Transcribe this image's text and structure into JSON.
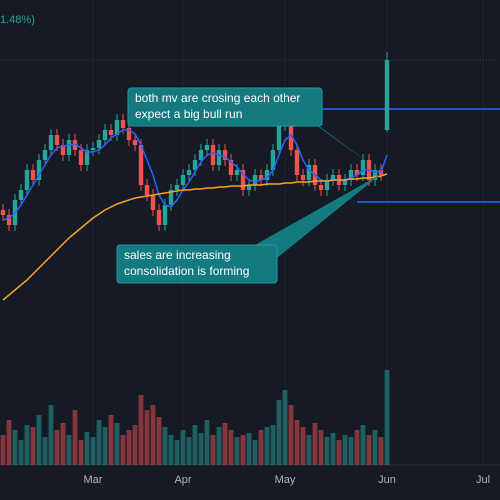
{
  "chart_data": {
    "type": "candlestick",
    "header_text": "1.48%)",
    "xlim": [
      -0.5,
      82.5
    ],
    "xticks": [
      {
        "value": 15,
        "label": "Mar"
      },
      {
        "value": 30,
        "label": "Apr"
      },
      {
        "value": 47,
        "label": "May"
      },
      {
        "value": 64,
        "label": "Jun"
      },
      {
        "value": 80,
        "label": "Jul"
      }
    ],
    "ylim": [
      0,
      500
    ],
    "up_color": "#26a69a",
    "down_color": "#ef5350",
    "open": [
      290,
      285,
      275,
      300,
      310,
      330,
      320,
      340,
      350,
      365,
      355,
      345,
      360,
      350,
      335,
      350,
      352,
      360,
      370,
      365,
      380,
      372,
      360,
      355,
      315,
      305,
      290,
      275,
      295,
      310,
      315,
      325,
      330,
      340,
      350,
      355,
      335,
      350,
      340,
      325,
      330,
      310,
      315,
      325,
      320,
      330,
      350,
      375,
      380,
      350,
      325,
      320,
      335,
      315,
      310,
      320,
      325,
      315,
      320,
      330,
      325,
      340,
      320,
      330,
      370
    ],
    "high": [
      296,
      291,
      306,
      316,
      336,
      336,
      346,
      356,
      371,
      371,
      361,
      366,
      366,
      356,
      356,
      358,
      366,
      376,
      376,
      386,
      386,
      378,
      366,
      361,
      321,
      311,
      296,
      301,
      316,
      321,
      331,
      336,
      346,
      356,
      361,
      361,
      356,
      356,
      346,
      336,
      336,
      321,
      331,
      331,
      336,
      356,
      381,
      386,
      386,
      356,
      331,
      341,
      341,
      321,
      326,
      331,
      331,
      326,
      336,
      336,
      346,
      346,
      336,
      336,
      448
    ],
    "low": [
      279,
      269,
      269,
      294,
      304,
      314,
      314,
      334,
      344,
      349,
      339,
      339,
      344,
      329,
      329,
      344,
      346,
      354,
      359,
      359,
      366,
      354,
      349,
      309,
      299,
      284,
      269,
      269,
      289,
      304,
      309,
      319,
      324,
      334,
      344,
      329,
      329,
      334,
      319,
      319,
      304,
      304,
      309,
      314,
      314,
      324,
      344,
      369,
      344,
      319,
      314,
      314,
      309,
      304,
      304,
      314,
      309,
      309,
      314,
      319,
      319,
      314,
      314,
      319,
      368
    ],
    "close": [
      285,
      275,
      300,
      310,
      330,
      320,
      340,
      350,
      365,
      355,
      345,
      360,
      350,
      335,
      350,
      352,
      360,
      370,
      365,
      380,
      372,
      360,
      355,
      315,
      305,
      290,
      275,
      295,
      310,
      315,
      325,
      330,
      340,
      350,
      355,
      335,
      350,
      340,
      325,
      330,
      310,
      315,
      325,
      320,
      330,
      350,
      375,
      380,
      350,
      325,
      320,
      335,
      315,
      310,
      320,
      325,
      315,
      320,
      330,
      325,
      340,
      320,
      330,
      325,
      440
    ],
    "series": [
      {
        "color": "#2962ff",
        "values": [
          280,
          282,
          287,
          295,
          305,
          315,
          325,
          335,
          345,
          352,
          354,
          355,
          356,
          352,
          348,
          348,
          350,
          355,
          362,
          366,
          370,
          370,
          366,
          355,
          340,
          325,
          305,
          295,
          293,
          300,
          310,
          318,
          328,
          338,
          345,
          347,
          345,
          343,
          338,
          333,
          326,
          320,
          318,
          320,
          322,
          330,
          345,
          360,
          365,
          355,
          340,
          330,
          325,
          320,
          318,
          320,
          320,
          320,
          322,
          325,
          330,
          330,
          328,
          328,
          345
        ]
      },
      {
        "color": "#f7a325",
        "values": [
          200,
          205,
          210,
          215,
          220,
          226,
          232,
          238,
          244,
          250,
          256,
          262,
          267,
          272,
          277,
          282,
          286,
          290,
          293,
          296,
          298,
          300,
          302,
          303,
          304,
          305,
          306,
          307,
          308,
          309,
          310,
          310,
          311,
          311,
          312,
          312,
          313,
          313,
          314,
          314,
          314,
          315,
          315,
          315,
          316,
          316,
          316,
          317,
          317,
          318,
          318,
          318,
          319,
          319,
          319,
          320,
          320,
          320,
          321,
          321,
          322,
          322,
          323,
          324,
          326
        ]
      }
    ],
    "volume_ylim": [
      0,
      100
    ],
    "volume": [
      30,
      45,
      35,
      25,
      40,
      38,
      50,
      28,
      60,
      35,
      42,
      30,
      55,
      25,
      33,
      28,
      45,
      38,
      50,
      42,
      30,
      35,
      40,
      70,
      55,
      60,
      48,
      38,
      30,
      25,
      35,
      28,
      40,
      32,
      45,
      30,
      38,
      42,
      35,
      28,
      30,
      32,
      25,
      35,
      38,
      40,
      65,
      75,
      60,
      45,
      38,
      30,
      42,
      35,
      28,
      32,
      25,
      30,
      28,
      35,
      40,
      30,
      35,
      28,
      95
    ],
    "levels": [
      {
        "value": 391,
        "from": 49,
        "color": "#2962ff"
      },
      {
        "value": 298,
        "from": 59,
        "color": "#2962ff"
      }
    ],
    "price_line": 440,
    "annotations": [
      {
        "lines": [
          "both mv are crosing each other",
          "expect a big bull run"
        ],
        "target": [
          63,
          328
        ]
      },
      {
        "lines": [
          "sales are increasing",
          "consolidation is forming"
        ],
        "target": [
          63,
          326
        ]
      }
    ]
  }
}
